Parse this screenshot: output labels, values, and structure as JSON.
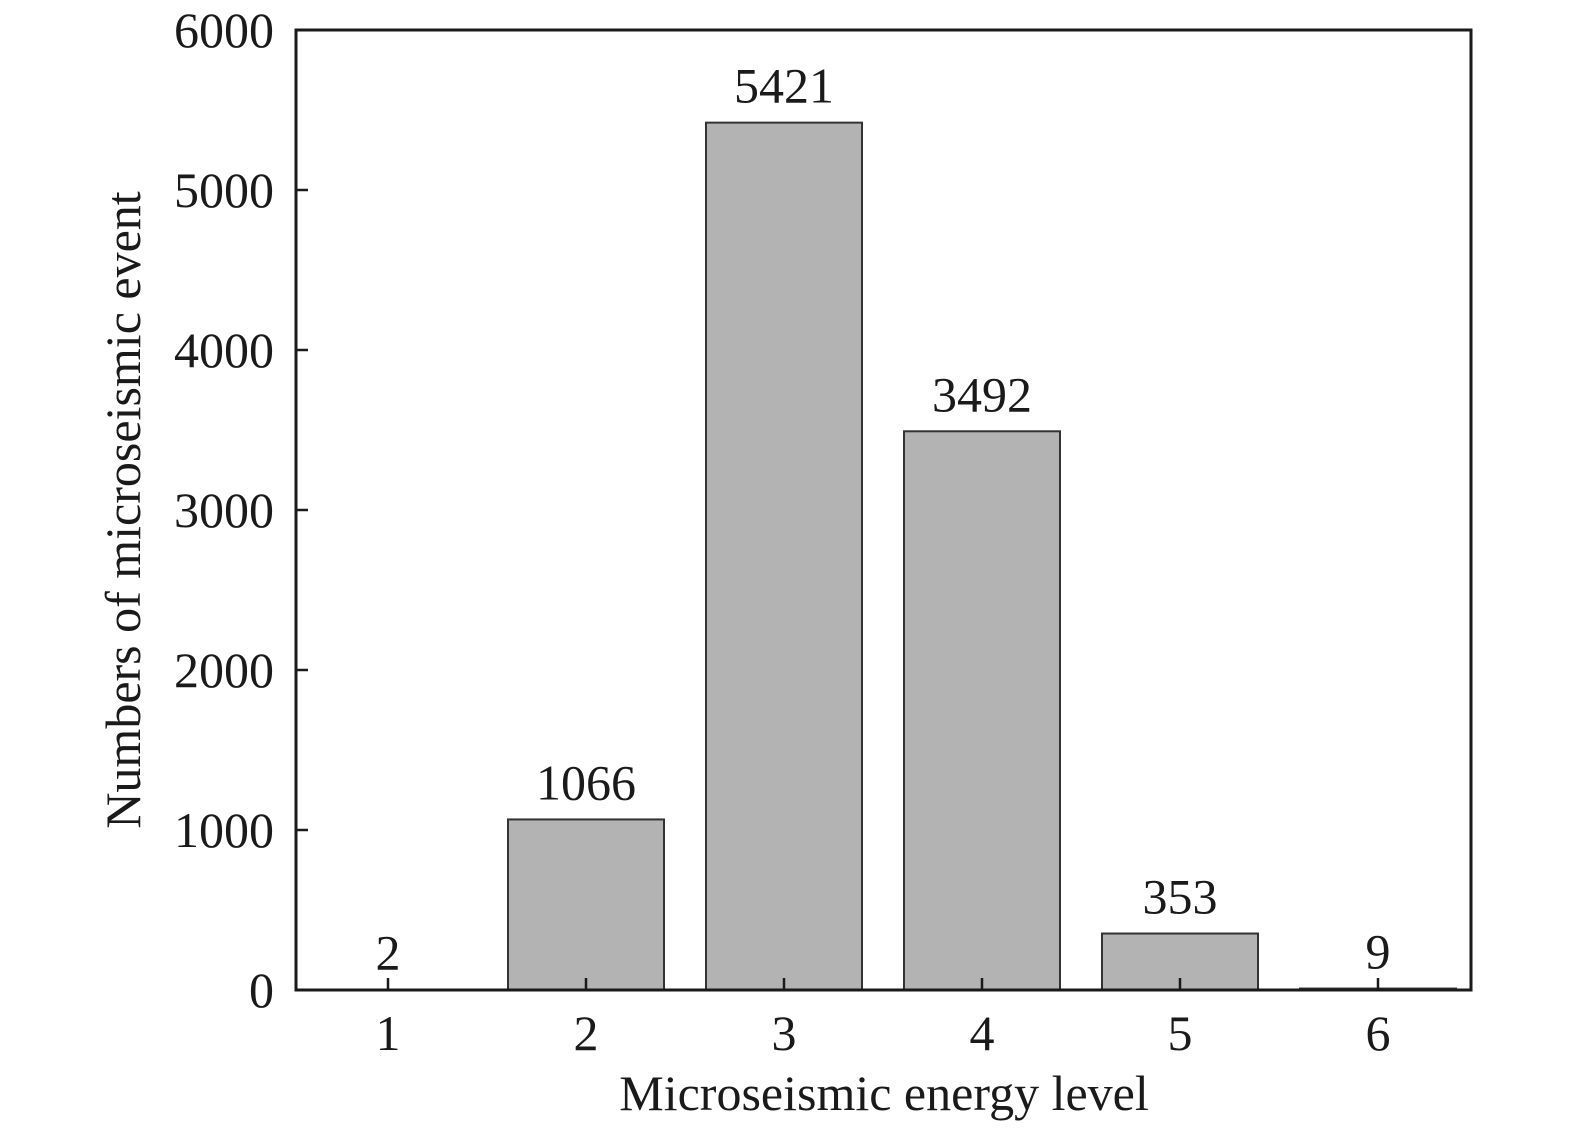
{
  "chart_data": {
    "type": "bar",
    "title": "",
    "xlabel": "Microseismic energy level",
    "ylabel": "Numbers of microseismic event",
    "categories": [
      "1",
      "2",
      "3",
      "4",
      "5",
      "6"
    ],
    "values": [
      2,
      1066,
      5421,
      3492,
      353,
      9
    ],
    "data_labels": [
      "2",
      "1066",
      "5421",
      "3492",
      "353",
      "9"
    ],
    "ylim": [
      0,
      6000
    ],
    "yticks": [
      0,
      1000,
      2000,
      3000,
      4000,
      5000,
      6000
    ],
    "ytick_labels": [
      "0",
      "1000",
      "2000",
      "3000",
      "4000",
      "5000",
      "6000"
    ],
    "grid": false,
    "legend": "none",
    "colors": {
      "bar_fill": "#b3b3b3",
      "bar_stroke": "#333333",
      "axis": "#1a1a1a"
    }
  }
}
